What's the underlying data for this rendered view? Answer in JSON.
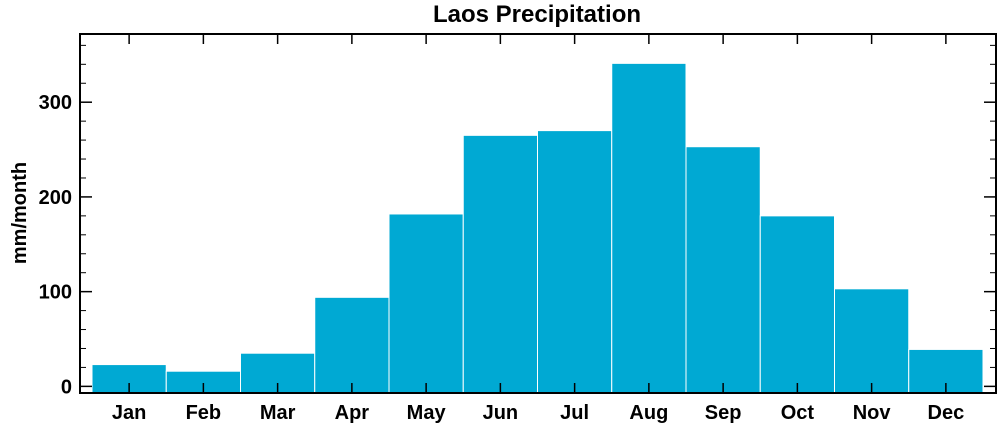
{
  "chart_data": {
    "type": "bar",
    "title": "Laos Precipitation",
    "xlabel": "",
    "ylabel": "mm/month",
    "categories": [
      "Jan",
      "Feb",
      "Mar",
      "Apr",
      "May",
      "Jun",
      "Jul",
      "Aug",
      "Sep",
      "Oct",
      "Nov",
      "Dec"
    ],
    "values": [
      23,
      16,
      35,
      94,
      182,
      265,
      270,
      341,
      253,
      180,
      103,
      39
    ],
    "ylim": [
      -7,
      372
    ],
    "yticks": [
      0,
      100,
      200,
      300
    ],
    "bar_color": "#00A9D3",
    "grid": false,
    "legend": "none"
  }
}
